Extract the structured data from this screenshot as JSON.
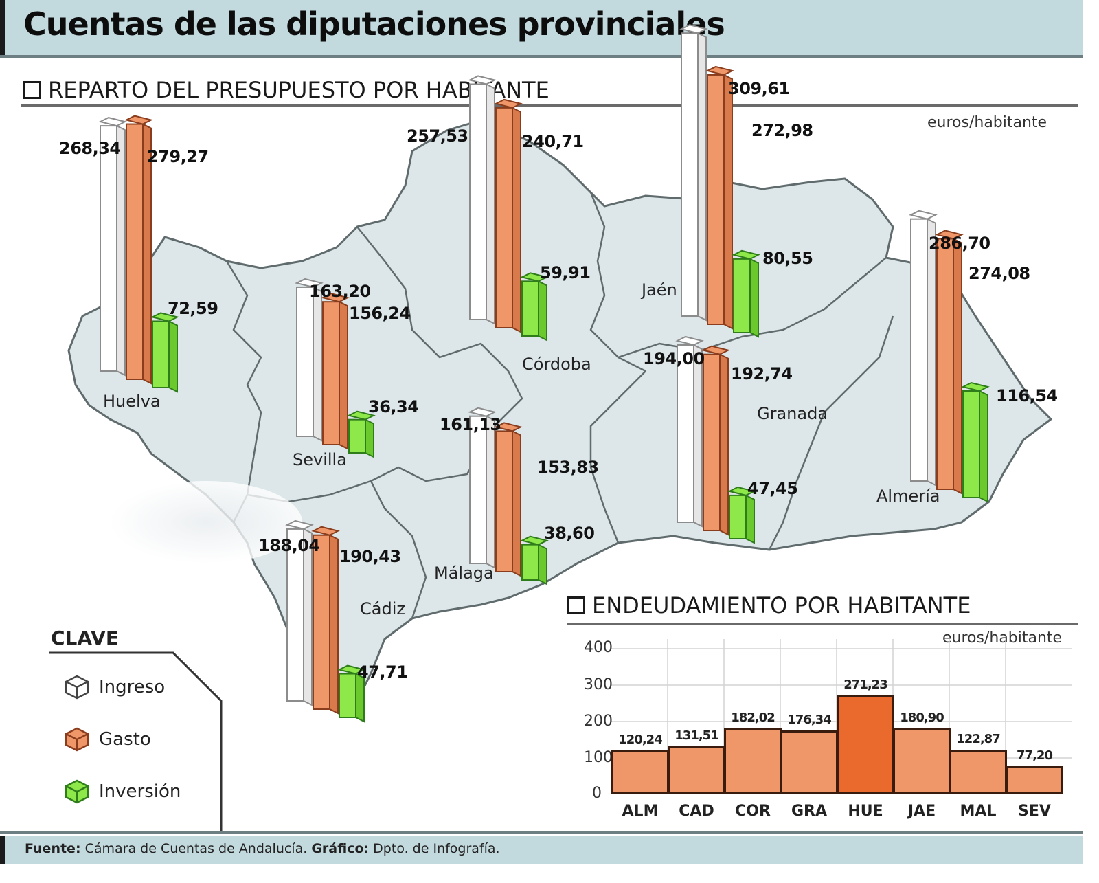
{
  "header": {
    "title": "Cuentas de las diputaciones provinciales"
  },
  "budget_section": {
    "title": "REPARTO DEL PRESUPUESTO POR HABITANTE",
    "unit": "euros/habitante"
  },
  "debt_section": {
    "title": "ENDEUDAMIENTO POR HABITANTE",
    "unit": "euros/habitante"
  },
  "legend": {
    "title": "CLAVE",
    "items": [
      {
        "label": "Ingreso",
        "color": "#ffffff"
      },
      {
        "label": "Gasto",
        "color": "#f0976a"
      },
      {
        "label": "Inversión",
        "color": "#8ee84a"
      }
    ]
  },
  "provinces": [
    {
      "name": "Huelva",
      "ingreso": "268,34",
      "gasto": "279,27",
      "inversion": "72,59"
    },
    {
      "name": "Sevilla",
      "ingreso": "163,20",
      "gasto": "156,24",
      "inversion": "36,34"
    },
    {
      "name": "Córdoba",
      "ingreso": "257,53",
      "gasto": "240,71",
      "inversion": "59,91"
    },
    {
      "name": "Jaén",
      "ingreso": "309,61",
      "gasto": "272,98",
      "inversion": "80,55"
    },
    {
      "name": "Almería",
      "ingreso": "286,70",
      "gasto": "274,08",
      "inversion": "116,54"
    },
    {
      "name": "Granada",
      "ingreso": "194,00",
      "gasto": "192,74",
      "inversion": "47,45"
    },
    {
      "name": "Málaga",
      "ingreso": "161,13",
      "gasto": "153,83",
      "inversion": "38,60"
    },
    {
      "name": "Cádiz",
      "ingreso": "188,04",
      "gasto": "190,43",
      "inversion": "47,71"
    }
  ],
  "debt_chart": {
    "yticks": [
      "400",
      "300",
      "200",
      "100",
      "0"
    ],
    "bars": [
      {
        "cat": "ALM",
        "label": "120,24"
      },
      {
        "cat": "CAD",
        "label": "131,51"
      },
      {
        "cat": "COR",
        "label": "182,02"
      },
      {
        "cat": "GRA",
        "label": "176,34"
      },
      {
        "cat": "HUE",
        "label": "271,23"
      },
      {
        "cat": "JAE",
        "label": "180,90"
      },
      {
        "cat": "MAL",
        "label": "122,87"
      },
      {
        "cat": "SEV",
        "label": "77,20"
      }
    ]
  },
  "footer": {
    "source_label": "Fuente:",
    "source": "Cámara de Cuentas de Andalucía.",
    "graphic_label": "Gráfico:",
    "graphic": "Dpto. de Infografía."
  },
  "chart_data": [
    {
      "type": "bar",
      "title": "REPARTO DEL PRESUPUESTO POR HABITANTE",
      "ylabel": "euros/habitante",
      "categories": [
        "Huelva",
        "Sevilla",
        "Córdoba",
        "Jaén",
        "Almería",
        "Granada",
        "Málaga",
        "Cádiz"
      ],
      "series": [
        {
          "name": "Ingreso",
          "values": [
            268.34,
            163.2,
            257.53,
            309.61,
            286.7,
            194.0,
            161.13,
            188.04
          ]
        },
        {
          "name": "Gasto",
          "values": [
            279.27,
            156.24,
            240.71,
            272.98,
            274.08,
            192.74,
            153.83,
            190.43
          ]
        },
        {
          "name": "Inversión",
          "values": [
            72.59,
            36.34,
            59.91,
            80.55,
            116.54,
            47.45,
            38.6,
            47.71
          ]
        }
      ],
      "legend_position": "bottom-left"
    },
    {
      "type": "bar",
      "title": "ENDEUDAMIENTO POR HABITANTE",
      "ylabel": "euros/habitante",
      "categories": [
        "ALM",
        "CAD",
        "COR",
        "GRA",
        "HUE",
        "JAE",
        "MAL",
        "SEV"
      ],
      "values": [
        120.24,
        131.51,
        182.02,
        176.34,
        271.23,
        180.9,
        122.87,
        77.2
      ],
      "ylim": [
        0,
        400
      ],
      "yticks": [
        0,
        100,
        200,
        300,
        400
      ],
      "grid": true,
      "highlight": "HUE"
    }
  ]
}
